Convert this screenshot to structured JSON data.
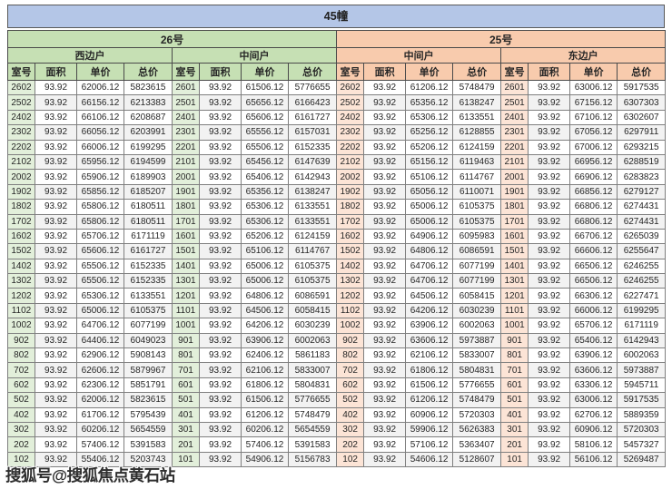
{
  "page": {
    "title": "45幢",
    "watermark": "搜狐号@搜狐焦点黄石站"
  },
  "colors": {
    "title_bg": "#b4c6e7",
    "green_header": "#c6e0b4",
    "green_light": "#e2efda",
    "orange_header": "#f8cbad",
    "orange_light": "#fce4d6",
    "stripe": "#f2f2f2",
    "border": "#7f7f7f"
  },
  "table": {
    "column_headers": [
      "室号",
      "面积",
      "单价",
      "总价"
    ],
    "buildings": [
      {
        "label": "26号",
        "theme": "green",
        "units": [
          {
            "label": "西边户",
            "rows": [
              [
                "2602",
                "93.92",
                "62006.12",
                "5823615"
              ],
              [
                "2502",
                "93.92",
                "66156.12",
                "6213383"
              ],
              [
                "2402",
                "93.92",
                "66106.12",
                "6208687"
              ],
              [
                "2302",
                "93.92",
                "66056.12",
                "6203991"
              ],
              [
                "2202",
                "93.92",
                "66006.12",
                "6199295"
              ],
              [
                "2102",
                "93.92",
                "65956.12",
                "6194599"
              ],
              [
                "2002",
                "93.92",
                "65906.12",
                "6189903"
              ],
              [
                "1902",
                "93.92",
                "65856.12",
                "6185207"
              ],
              [
                "1802",
                "93.92",
                "65806.12",
                "6180511"
              ],
              [
                "1702",
                "93.92",
                "65806.12",
                "6180511"
              ],
              [
                "1602",
                "93.92",
                "65706.12",
                "6171119"
              ],
              [
                "1502",
                "93.92",
                "65606.12",
                "6161727"
              ],
              [
                "1402",
                "93.92",
                "65506.12",
                "6152335"
              ],
              [
                "1302",
                "93.92",
                "65506.12",
                "6152335"
              ],
              [
                "1202",
                "93.92",
                "65306.12",
                "6133551"
              ],
              [
                "1102",
                "93.92",
                "65006.12",
                "6105375"
              ],
              [
                "1002",
                "93.92",
                "64706.12",
                "6077199"
              ],
              [
                "902",
                "93.92",
                "64406.12",
                "6049023"
              ],
              [
                "802",
                "93.92",
                "62906.12",
                "5908143"
              ],
              [
                "702",
                "93.92",
                "62606.12",
                "5879967"
              ],
              [
                "602",
                "93.92",
                "62306.12",
                "5851791"
              ],
              [
                "502",
                "93.92",
                "62006.12",
                "5823615"
              ],
              [
                "402",
                "93.92",
                "61706.12",
                "5795439"
              ],
              [
                "302",
                "93.92",
                "60206.12",
                "5654559"
              ],
              [
                "202",
                "93.92",
                "57406.12",
                "5391583"
              ],
              [
                "102",
                "93.92",
                "55406.12",
                "5203743"
              ]
            ]
          },
          {
            "label": "中间户",
            "rows": [
              [
                "2601",
                "93.92",
                "61506.12",
                "5776655"
              ],
              [
                "2501",
                "93.92",
                "65656.12",
                "6166423"
              ],
              [
                "2401",
                "93.92",
                "65606.12",
                "6161727"
              ],
              [
                "2301",
                "93.92",
                "65556.12",
                "6157031"
              ],
              [
                "2201",
                "93.92",
                "65506.12",
                "6152335"
              ],
              [
                "2101",
                "93.92",
                "65456.12",
                "6147639"
              ],
              [
                "2001",
                "93.92",
                "65406.12",
                "6142943"
              ],
              [
                "1901",
                "93.92",
                "65356.12",
                "6138247"
              ],
              [
                "1801",
                "93.92",
                "65306.12",
                "6133551"
              ],
              [
                "1701",
                "93.92",
                "65306.12",
                "6133551"
              ],
              [
                "1601",
                "93.92",
                "65206.12",
                "6124159"
              ],
              [
                "1501",
                "93.92",
                "65106.12",
                "6114767"
              ],
              [
                "1401",
                "93.92",
                "65006.12",
                "6105375"
              ],
              [
                "1301",
                "93.92",
                "65006.12",
                "6105375"
              ],
              [
                "1201",
                "93.92",
                "64806.12",
                "6086591"
              ],
              [
                "1101",
                "93.92",
                "64506.12",
                "6058415"
              ],
              [
                "1001",
                "93.92",
                "64206.12",
                "6030239"
              ],
              [
                "901",
                "93.92",
                "63906.12",
                "6002063"
              ],
              [
                "801",
                "93.92",
                "62406.12",
                "5861183"
              ],
              [
                "701",
                "93.92",
                "62106.12",
                "5833007"
              ],
              [
                "601",
                "93.92",
                "61806.12",
                "5804831"
              ],
              [
                "501",
                "93.92",
                "61506.12",
                "5776655"
              ],
              [
                "401",
                "93.92",
                "61206.12",
                "5748479"
              ],
              [
                "301",
                "93.92",
                "60206.12",
                "5654559"
              ],
              [
                "201",
                "93.92",
                "57406.12",
                "5391583"
              ],
              [
                "101",
                "93.92",
                "54906.12",
                "5156783"
              ]
            ]
          }
        ]
      },
      {
        "label": "25号",
        "theme": "orange",
        "units": [
          {
            "label": "中间户",
            "rows": [
              [
                "2602",
                "93.92",
                "61206.12",
                "5748479"
              ],
              [
                "2502",
                "93.92",
                "65356.12",
                "6138247"
              ],
              [
                "2402",
                "93.92",
                "65306.12",
                "6133551"
              ],
              [
                "2302",
                "93.92",
                "65256.12",
                "6128855"
              ],
              [
                "2202",
                "93.92",
                "65206.12",
                "6124159"
              ],
              [
                "2102",
                "93.92",
                "65156.12",
                "6119463"
              ],
              [
                "2002",
                "93.92",
                "65106.12",
                "6114767"
              ],
              [
                "1902",
                "93.92",
                "65056.12",
                "6110071"
              ],
              [
                "1802",
                "93.92",
                "65006.12",
                "6105375"
              ],
              [
                "1702",
                "93.92",
                "65006.12",
                "6105375"
              ],
              [
                "1602",
                "93.92",
                "64906.12",
                "6095983"
              ],
              [
                "1502",
                "93.92",
                "64806.12",
                "6086591"
              ],
              [
                "1402",
                "93.92",
                "64706.12",
                "6077199"
              ],
              [
                "1302",
                "93.92",
                "64706.12",
                "6077199"
              ],
              [
                "1202",
                "93.92",
                "64506.12",
                "6058415"
              ],
              [
                "1102",
                "93.92",
                "64206.12",
                "6030239"
              ],
              [
                "1002",
                "93.92",
                "63906.12",
                "6002063"
              ],
              [
                "902",
                "93.92",
                "63606.12",
                "5973887"
              ],
              [
                "802",
                "93.92",
                "62106.12",
                "5833007"
              ],
              [
                "702",
                "93.92",
                "61806.12",
                "5804831"
              ],
              [
                "602",
                "93.92",
                "61506.12",
                "5776655"
              ],
              [
                "502",
                "93.92",
                "61206.12",
                "5748479"
              ],
              [
                "402",
                "93.92",
                "60906.12",
                "5720303"
              ],
              [
                "302",
                "93.92",
                "59906.12",
                "5626383"
              ],
              [
                "202",
                "93.92",
                "57106.12",
                "5363407"
              ],
              [
                "102",
                "93.92",
                "54606.12",
                "5128607"
              ]
            ]
          },
          {
            "label": "东边户",
            "rows": [
              [
                "2601",
                "93.92",
                "63006.12",
                "5917535"
              ],
              [
                "2501",
                "93.92",
                "67156.12",
                "6307303"
              ],
              [
                "2401",
                "93.92",
                "67106.12",
                "6302607"
              ],
              [
                "2301",
                "93.92",
                "67056.12",
                "6297911"
              ],
              [
                "2201",
                "93.92",
                "67006.12",
                "6293215"
              ],
              [
                "2101",
                "93.92",
                "66956.12",
                "6288519"
              ],
              [
                "2001",
                "93.92",
                "66906.12",
                "6283823"
              ],
              [
                "1901",
                "93.92",
                "66856.12",
                "6279127"
              ],
              [
                "1801",
                "93.92",
                "66806.12",
                "6274431"
              ],
              [
                "1701",
                "93.92",
                "66806.12",
                "6274431"
              ],
              [
                "1601",
                "93.92",
                "66706.12",
                "6265039"
              ],
              [
                "1501",
                "93.92",
                "66606.12",
                "6255647"
              ],
              [
                "1401",
                "93.92",
                "66506.12",
                "6246255"
              ],
              [
                "1301",
                "93.92",
                "66506.12",
                "6246255"
              ],
              [
                "1201",
                "93.92",
                "66306.12",
                "6227471"
              ],
              [
                "1101",
                "93.92",
                "66006.12",
                "6199295"
              ],
              [
                "1001",
                "93.92",
                "65706.12",
                "6171119"
              ],
              [
                "901",
                "93.92",
                "65406.12",
                "6142943"
              ],
              [
                "801",
                "93.92",
                "63906.12",
                "6002063"
              ],
              [
                "701",
                "93.92",
                "63606.12",
                "5973887"
              ],
              [
                "601",
                "93.92",
                "63306.12",
                "5945711"
              ],
              [
                "501",
                "93.92",
                "63006.12",
                "5917535"
              ],
              [
                "401",
                "93.92",
                "62706.12",
                "5889359"
              ],
              [
                "301",
                "93.92",
                "60906.12",
                "5720303"
              ],
              [
                "201",
                "93.92",
                "58106.12",
                "5457327"
              ],
              [
                "101",
                "93.92",
                "56106.12",
                "5269487"
              ]
            ]
          }
        ]
      }
    ]
  }
}
